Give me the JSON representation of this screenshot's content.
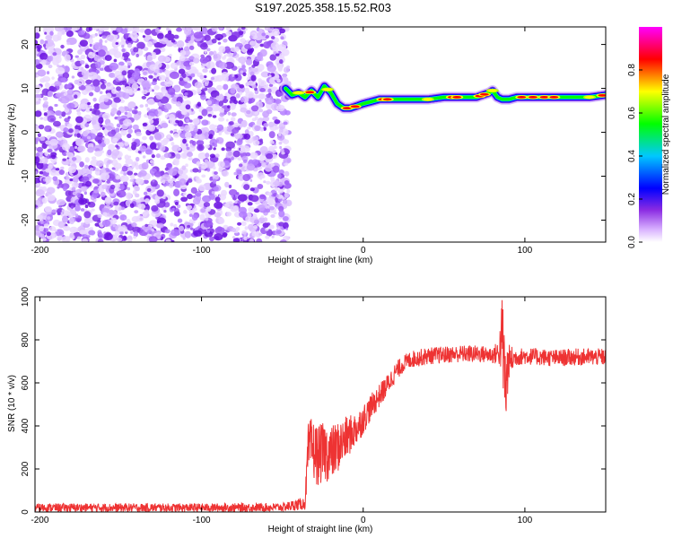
{
  "title": "S197.2025.358.15.52.R03",
  "chart_data": [
    {
      "type": "heatmap",
      "xlabel": "Height of straight line (km)",
      "ylabel": "Frequency (Hz)",
      "xlim": [
        -203,
        150
      ],
      "ylim": [
        -25,
        24
      ],
      "x_ticks": [
        -200,
        -100,
        0,
        100
      ],
      "x_tick_labels": [
        "-200",
        "-100",
        "0",
        "100"
      ],
      "y_ticks": [
        20,
        10,
        0,
        -10,
        -20
      ],
      "y_tick_labels": [
        "20",
        "10",
        "0",
        "-10",
        "-20"
      ],
      "noise_region_x": [
        -203,
        -46
      ],
      "ridge": {
        "x": [
          -48,
          -44,
          -40,
          -36,
          -32,
          -28,
          -24,
          -20,
          -16,
          -12,
          -8,
          -4,
          0,
          5,
          10,
          20,
          30,
          40,
          50,
          60,
          70,
          78,
          80,
          83,
          86,
          90,
          95,
          100,
          110,
          120,
          130,
          140,
          150
        ],
        "y": [
          10.0,
          8.5,
          9.0,
          8.0,
          9.5,
          8.0,
          10.5,
          9.0,
          6.5,
          5.5,
          5.5,
          6.0,
          6.5,
          7.0,
          7.5,
          7.5,
          7.5,
          7.5,
          8.0,
          8.0,
          8.0,
          9.0,
          9.5,
          8.0,
          7.5,
          7.5,
          8.0,
          8.0,
          8.0,
          8.0,
          8.0,
          8.0,
          8.5
        ]
      },
      "colorbar": {
        "label": "Normalized spectral amplitude",
        "range": [
          0,
          1
        ],
        "ticks": [
          0.0,
          0.2,
          0.4,
          0.6,
          0.8
        ],
        "tick_labels": [
          "0.0",
          "0.2",
          "0.4",
          "0.6",
          "0.8"
        ]
      }
    },
    {
      "type": "line",
      "xlabel": "Height of straight line (km)",
      "ylabel": "SNR (10 * v/v)",
      "xlim": [
        -203,
        150
      ],
      "ylim": [
        0,
        1000
      ],
      "x_ticks": [
        -200,
        -100,
        0,
        100
      ],
      "x_tick_labels": [
        "-200",
        "-100",
        "0",
        "100"
      ],
      "y_ticks": [
        0,
        200,
        400,
        600,
        800,
        1000
      ],
      "y_tick_labels": [
        "0",
        "200",
        "400",
        "600",
        "800",
        "1000"
      ],
      "series": [
        {
          "name": "SNR",
          "color": "#ee3333",
          "x": [
            -203,
            -150,
            -100,
            -50,
            -36,
            -34,
            -32,
            -28,
            -24,
            -20,
            -16,
            -12,
            -8,
            -4,
            0,
            5,
            10,
            15,
            20,
            25,
            30,
            40,
            50,
            60,
            70,
            80,
            84,
            86,
            88,
            90,
            95,
            100,
            110,
            120,
            130,
            140,
            150
          ],
          "values": [
            20,
            20,
            20,
            22,
            40,
            290,
            300,
            260,
            280,
            270,
            300,
            330,
            360,
            390,
            430,
            490,
            540,
            590,
            650,
            690,
            710,
            725,
            730,
            735,
            735,
            730,
            740,
            820,
            560,
            700,
            720,
            725,
            720,
            715,
            720,
            720,
            720
          ],
          "noise_amplitude": [
            20,
            20,
            20,
            20,
            30,
            120,
            140,
            140,
            140,
            130,
            120,
            110,
            90,
            80,
            70,
            60,
            55,
            50,
            45,
            40,
            40,
            40,
            40,
            40,
            40,
            40,
            60,
            200,
            250,
            80,
            40,
            40,
            40,
            40,
            40,
            40,
            40
          ]
        }
      ]
    }
  ]
}
